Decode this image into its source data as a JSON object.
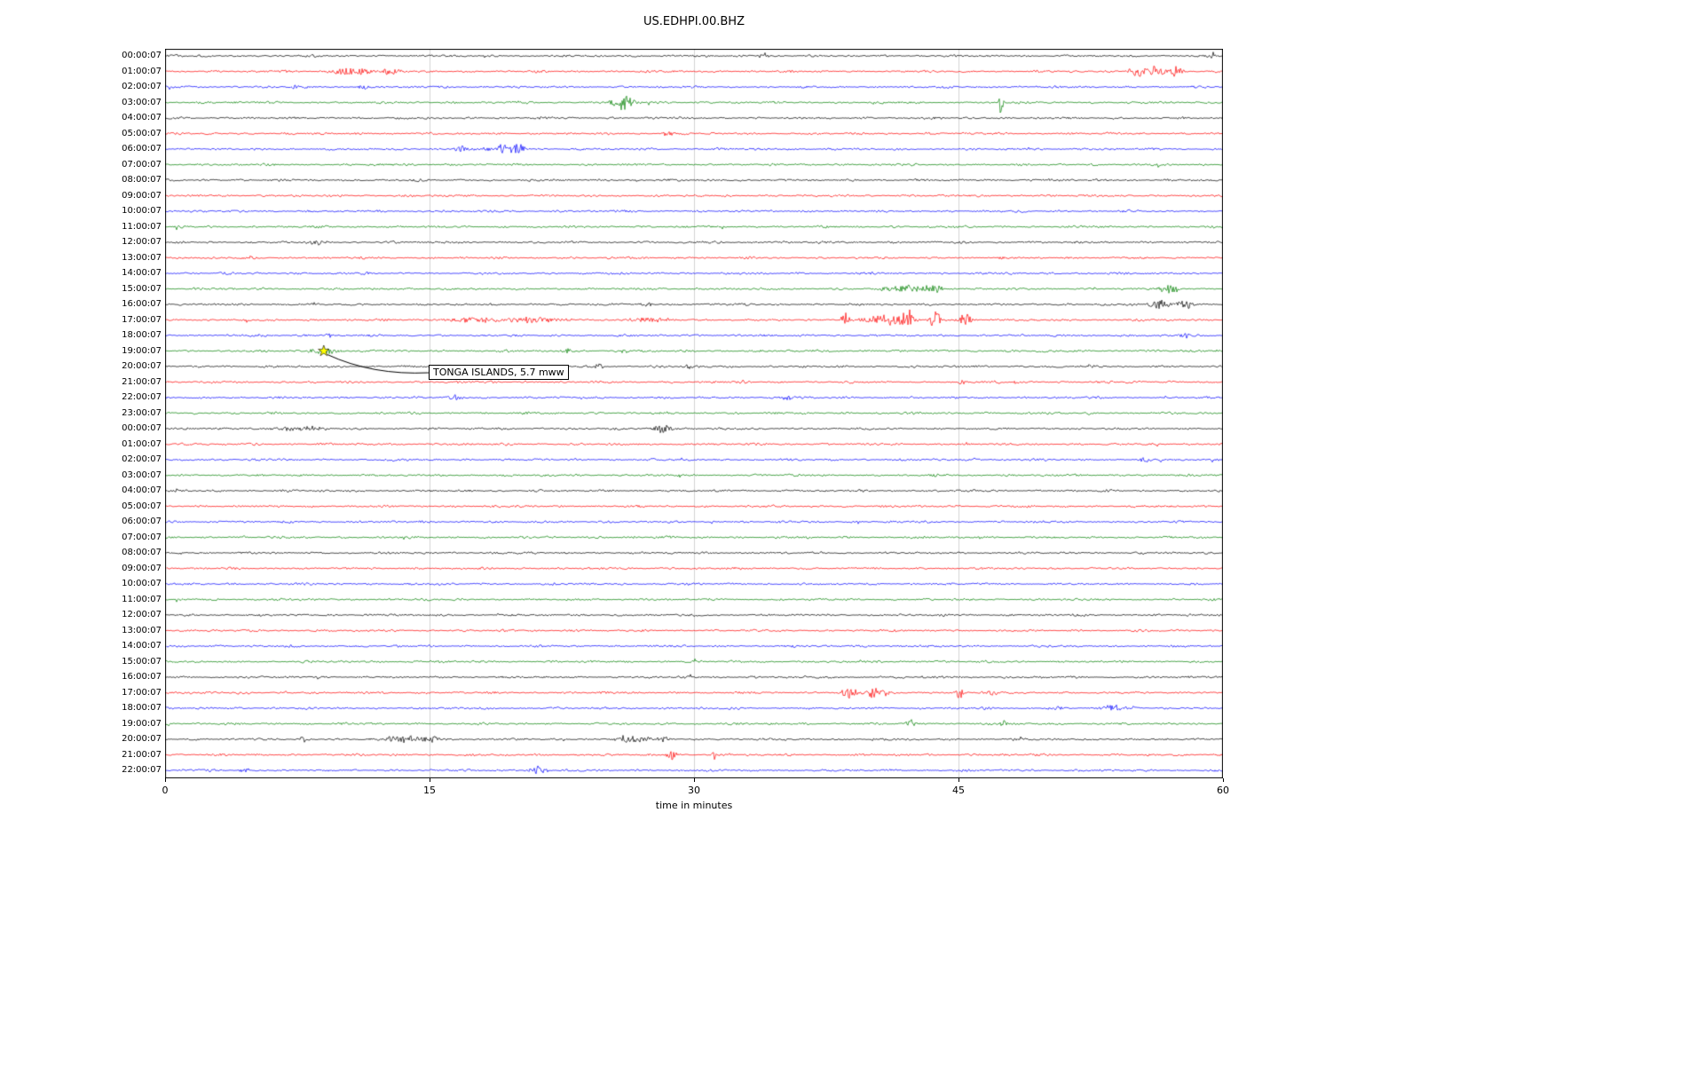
{
  "title": "US.EDHPI.00.BHZ",
  "chart_data": {
    "type": "line",
    "subtype": "helicorder-seismogram",
    "title": "US.EDHPI.00.BHZ",
    "xlabel": "time in minutes",
    "xlim": [
      0,
      60
    ],
    "x_ticks": [
      0,
      15,
      30,
      45,
      60
    ],
    "x_tick_labels": [
      "0",
      "15",
      "30",
      "45",
      "60"
    ],
    "grid": true,
    "legend": false,
    "minutes_per_row": 60,
    "trace_color_cycle": [
      "#000000",
      "#ff0000",
      "#0000ff",
      "#008000"
    ],
    "rows": [
      {
        "label": "00:00:07",
        "color": "#000000"
      },
      {
        "label": "01:00:07",
        "color": "#ff0000"
      },
      {
        "label": "02:00:07",
        "color": "#0000ff"
      },
      {
        "label": "03:00:07",
        "color": "#008000"
      },
      {
        "label": "04:00:07",
        "color": "#000000"
      },
      {
        "label": "05:00:07",
        "color": "#ff0000"
      },
      {
        "label": "06:00:07",
        "color": "#0000ff"
      },
      {
        "label": "07:00:07",
        "color": "#008000"
      },
      {
        "label": "08:00:07",
        "color": "#000000"
      },
      {
        "label": "09:00:07",
        "color": "#ff0000"
      },
      {
        "label": "10:00:07",
        "color": "#0000ff"
      },
      {
        "label": "11:00:07",
        "color": "#008000"
      },
      {
        "label": "12:00:07",
        "color": "#000000"
      },
      {
        "label": "13:00:07",
        "color": "#ff0000"
      },
      {
        "label": "14:00:07",
        "color": "#0000ff"
      },
      {
        "label": "15:00:07",
        "color": "#008000"
      },
      {
        "label": "16:00:07",
        "color": "#000000"
      },
      {
        "label": "17:00:07",
        "color": "#ff0000"
      },
      {
        "label": "18:00:07",
        "color": "#0000ff"
      },
      {
        "label": "19:00:07",
        "color": "#008000"
      },
      {
        "label": "20:00:07",
        "color": "#000000"
      },
      {
        "label": "21:00:07",
        "color": "#ff0000"
      },
      {
        "label": "22:00:07",
        "color": "#0000ff"
      },
      {
        "label": "23:00:07",
        "color": "#008000"
      },
      {
        "label": "00:00:07",
        "color": "#000000"
      },
      {
        "label": "01:00:07",
        "color": "#ff0000"
      },
      {
        "label": "02:00:07",
        "color": "#0000ff"
      },
      {
        "label": "03:00:07",
        "color": "#008000"
      },
      {
        "label": "04:00:07",
        "color": "#000000"
      },
      {
        "label": "05:00:07",
        "color": "#ff0000"
      },
      {
        "label": "06:00:07",
        "color": "#0000ff"
      },
      {
        "label": "07:00:07",
        "color": "#008000"
      },
      {
        "label": "08:00:07",
        "color": "#000000"
      },
      {
        "label": "09:00:07",
        "color": "#ff0000"
      },
      {
        "label": "10:00:07",
        "color": "#0000ff"
      },
      {
        "label": "11:00:07",
        "color": "#008000"
      },
      {
        "label": "12:00:07",
        "color": "#000000"
      },
      {
        "label": "13:00:07",
        "color": "#ff0000"
      },
      {
        "label": "14:00:07",
        "color": "#0000ff"
      },
      {
        "label": "15:00:07",
        "color": "#008000"
      },
      {
        "label": "16:00:07",
        "color": "#000000"
      },
      {
        "label": "17:00:07",
        "color": "#ff0000"
      },
      {
        "label": "18:00:07",
        "color": "#0000ff"
      },
      {
        "label": "19:00:07",
        "color": "#008000"
      },
      {
        "label": "20:00:07",
        "color": "#000000"
      },
      {
        "label": "21:00:07",
        "color": "#ff0000"
      },
      {
        "label": "22:00:07",
        "color": "#0000ff"
      }
    ],
    "events": [
      {
        "row": 0,
        "minute": 33.9,
        "amp": 5,
        "dur": 0.25
      },
      {
        "row": 0,
        "minute": 59.4,
        "amp": 4,
        "dur": 0.15
      },
      {
        "row": 1,
        "minute": 10.5,
        "amp": 4,
        "dur": 1.2
      },
      {
        "row": 1,
        "minute": 12.8,
        "amp": 4,
        "dur": 0.5
      },
      {
        "row": 1,
        "minute": 55.2,
        "amp": 7,
        "dur": 0.5
      },
      {
        "row": 1,
        "minute": 56.3,
        "amp": 8,
        "dur": 0.4
      },
      {
        "row": 1,
        "minute": 57.3,
        "amp": 5,
        "dur": 0.4
      },
      {
        "row": 2,
        "minute": 7.2,
        "amp": 3,
        "dur": 0.4
      },
      {
        "row": 2,
        "minute": 11.2,
        "amp": 4,
        "dur": 0.3
      },
      {
        "row": 3,
        "minute": 25.9,
        "amp": 9,
        "dur": 0.6
      },
      {
        "row": 3,
        "minute": 47.4,
        "amp": 13,
        "dur": 0.12
      },
      {
        "row": 5,
        "minute": 28.5,
        "amp": 3,
        "dur": 0.3
      },
      {
        "row": 6,
        "minute": 16.8,
        "amp": 4,
        "dur": 0.4
      },
      {
        "row": 6,
        "minute": 19.0,
        "amp": 5,
        "dur": 0.8
      },
      {
        "row": 6,
        "minute": 19.9,
        "amp": 7,
        "dur": 0.5
      },
      {
        "row": 12,
        "minute": 8.5,
        "amp": 2.5,
        "dur": 0.6
      },
      {
        "row": 15,
        "minute": 42.0,
        "amp": 4,
        "dur": 1.2
      },
      {
        "row": 15,
        "minute": 43.6,
        "amp": 5,
        "dur": 0.5
      },
      {
        "row": 15,
        "minute": 57.0,
        "amp": 5,
        "dur": 0.6
      },
      {
        "row": 16,
        "minute": 27.3,
        "amp": 3,
        "dur": 0.3
      },
      {
        "row": 16,
        "minute": 56.5,
        "amp": 5,
        "dur": 0.7
      },
      {
        "row": 16,
        "minute": 57.8,
        "amp": 5,
        "dur": 0.5
      },
      {
        "row": 17,
        "minute": 17.5,
        "amp": 3,
        "dur": 1.5
      },
      {
        "row": 17,
        "minute": 21.0,
        "amp": 3,
        "dur": 2.0
      },
      {
        "row": 17,
        "minute": 27.5,
        "amp": 3,
        "dur": 1.0
      },
      {
        "row": 17,
        "minute": 38.6,
        "amp": 9,
        "dur": 0.25
      },
      {
        "row": 17,
        "minute": 41.0,
        "amp": 5,
        "dur": 1.5
      },
      {
        "row": 17,
        "minute": 42.1,
        "amp": 12,
        "dur": 0.3
      },
      {
        "row": 17,
        "minute": 43.7,
        "amp": 10,
        "dur": 0.3
      },
      {
        "row": 17,
        "minute": 45.4,
        "amp": 7,
        "dur": 0.4
      },
      {
        "row": 18,
        "minute": 9.3,
        "amp": 3,
        "dur": 0.3
      },
      {
        "row": 18,
        "minute": 57.8,
        "amp": 2.5,
        "dur": 0.5
      },
      {
        "row": 19,
        "minute": 9.0,
        "amp": 4,
        "dur": 0.8
      },
      {
        "row": 19,
        "minute": 22.8,
        "amp": 2.5,
        "dur": 0.3
      },
      {
        "row": 19,
        "minute": 26.0,
        "amp": 2.5,
        "dur": 0.3
      },
      {
        "row": 20,
        "minute": 24.6,
        "amp": 4,
        "dur": 0.25
      },
      {
        "row": 20,
        "minute": 29.6,
        "amp": 3,
        "dur": 0.3
      },
      {
        "row": 21,
        "minute": 32.8,
        "amp": 3,
        "dur": 0.25
      },
      {
        "row": 21,
        "minute": 45.2,
        "amp": 3,
        "dur": 0.25
      },
      {
        "row": 21,
        "minute": 48.3,
        "amp": 3,
        "dur": 0.2
      },
      {
        "row": 22,
        "minute": 16.5,
        "amp": 2.5,
        "dur": 0.4
      },
      {
        "row": 22,
        "minute": 35.5,
        "amp": 2.5,
        "dur": 0.5
      },
      {
        "row": 24,
        "minute": 7.5,
        "amp": 3,
        "dur": 1.5
      },
      {
        "row": 24,
        "minute": 28.2,
        "amp": 5,
        "dur": 0.5
      },
      {
        "row": 26,
        "minute": 55.5,
        "amp": 3,
        "dur": 0.3
      },
      {
        "row": 39,
        "minute": 39.5,
        "amp": 3,
        "dur": 0.3
      },
      {
        "row": 41,
        "minute": 38.8,
        "amp": 6,
        "dur": 0.5
      },
      {
        "row": 41,
        "minute": 40.3,
        "amp": 6,
        "dur": 0.6
      },
      {
        "row": 41,
        "minute": 45.1,
        "amp": 9,
        "dur": 0.2
      },
      {
        "row": 41,
        "minute": 46.8,
        "amp": 4,
        "dur": 0.4
      },
      {
        "row": 42,
        "minute": 50.5,
        "amp": 4,
        "dur": 0.4
      },
      {
        "row": 42,
        "minute": 53.7,
        "amp": 5,
        "dur": 0.5
      },
      {
        "row": 43,
        "minute": 42.3,
        "amp": 4,
        "dur": 0.3
      },
      {
        "row": 43,
        "minute": 47.6,
        "amp": 4,
        "dur": 0.3
      },
      {
        "row": 44,
        "minute": 7.8,
        "amp": 5,
        "dur": 0.2
      },
      {
        "row": 44,
        "minute": 13.5,
        "amp": 4,
        "dur": 1.2
      },
      {
        "row": 44,
        "minute": 15.0,
        "amp": 4,
        "dur": 0.6
      },
      {
        "row": 44,
        "minute": 26.5,
        "amp": 4,
        "dur": 1.0
      },
      {
        "row": 44,
        "minute": 28.3,
        "amp": 4,
        "dur": 0.4
      },
      {
        "row": 45,
        "minute": 28.7,
        "amp": 7,
        "dur": 0.25
      },
      {
        "row": 45,
        "minute": 31.2,
        "amp": 6,
        "dur": 0.2
      },
      {
        "row": 46,
        "minute": 4.5,
        "amp": 2.5,
        "dur": 0.3
      },
      {
        "row": 46,
        "minute": 21.2,
        "amp": 5,
        "dur": 0.5
      }
    ],
    "annotation": {
      "text": "TONGA ISLANDS, 5.7 mww",
      "row_index": 19,
      "row_label": "19:00:07",
      "minute": 9.0,
      "marker": "star",
      "marker_color": "#ffff00"
    },
    "colors": {
      "grid": "#c8c8c8",
      "axis": "#000000",
      "background": "#ffffff"
    }
  }
}
